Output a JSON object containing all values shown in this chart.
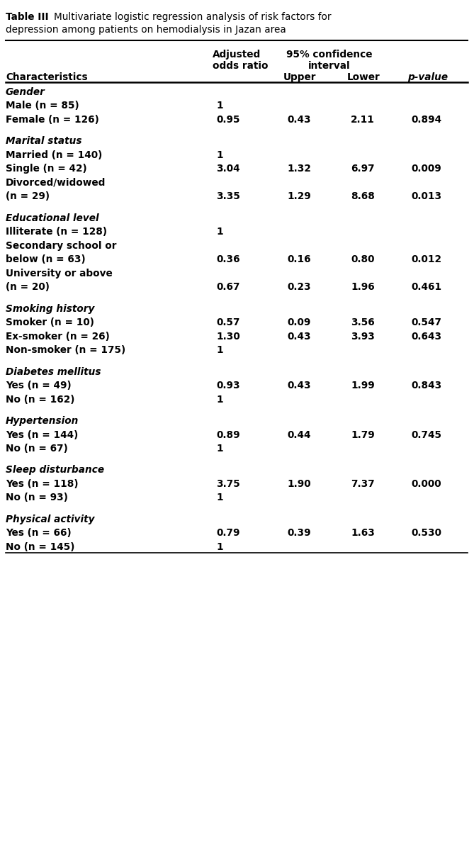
{
  "title_bold": "Table III",
  "title_rest": " Multivariate logistic regression analysis of risk factors for\ndepression among patients on hemodialysis in Jazan area",
  "rows": [
    {
      "type": "section",
      "label": "Gender"
    },
    {
      "type": "data",
      "label": "Male (n = 85)",
      "or": "1",
      "upper": "",
      "lower": "",
      "pval": ""
    },
    {
      "type": "data",
      "label": "Female (n = 126)",
      "or": "0.95",
      "upper": "0.43",
      "lower": "2.11",
      "pval": "0.894"
    },
    {
      "type": "spacer"
    },
    {
      "type": "section",
      "label": "Marital status"
    },
    {
      "type": "data",
      "label": "Married (n = 140)",
      "or": "1",
      "upper": "",
      "lower": "",
      "pval": ""
    },
    {
      "type": "data",
      "label": "Single (n = 42)",
      "or": "3.04",
      "upper": "1.32",
      "lower": "6.97",
      "pval": "0.009"
    },
    {
      "type": "data",
      "label": "Divorced/widowed",
      "or": "",
      "upper": "",
      "lower": "",
      "pval": ""
    },
    {
      "type": "data",
      "label": "(n = 29)",
      "or": "3.35",
      "upper": "1.29",
      "lower": "8.68",
      "pval": "0.013"
    },
    {
      "type": "spacer"
    },
    {
      "type": "section",
      "label": "Educational level"
    },
    {
      "type": "data",
      "label": "Illiterate (n = 128)",
      "or": "1",
      "upper": "",
      "lower": "",
      "pval": ""
    },
    {
      "type": "data",
      "label": "Secondary school or",
      "or": "",
      "upper": "",
      "lower": "",
      "pval": ""
    },
    {
      "type": "data",
      "label": "below (n = 63)",
      "or": "0.36",
      "upper": "0.16",
      "lower": "0.80",
      "pval": "0.012"
    },
    {
      "type": "data",
      "label": "University or above",
      "or": "",
      "upper": "",
      "lower": "",
      "pval": ""
    },
    {
      "type": "data",
      "label": "(n = 20)",
      "or": "0.67",
      "upper": "0.23",
      "lower": "1.96",
      "pval": "0.461"
    },
    {
      "type": "spacer"
    },
    {
      "type": "section",
      "label": "Smoking history"
    },
    {
      "type": "data",
      "label": "Smoker (n = 10)",
      "or": "0.57",
      "upper": "0.09",
      "lower": "3.56",
      "pval": "0.547"
    },
    {
      "type": "data",
      "label": "Ex-smoker (n = 26)",
      "or": "1.30",
      "upper": "0.43",
      "lower": "3.93",
      "pval": "0.643"
    },
    {
      "type": "data",
      "label": "Non-smoker (n = 175)",
      "or": "1",
      "upper": "",
      "lower": "",
      "pval": ""
    },
    {
      "type": "spacer"
    },
    {
      "type": "section",
      "label": "Diabetes mellitus"
    },
    {
      "type": "data",
      "label": "Yes (n = 49)",
      "or": "0.93",
      "upper": "0.43",
      "lower": "1.99",
      "pval": "0.843"
    },
    {
      "type": "data",
      "label": "No (n = 162)",
      "or": "1",
      "upper": "",
      "lower": "",
      "pval": ""
    },
    {
      "type": "spacer"
    },
    {
      "type": "section",
      "label": "Hypertension"
    },
    {
      "type": "data",
      "label": "Yes (n = 144)",
      "or": "0.89",
      "upper": "0.44",
      "lower": "1.79",
      "pval": "0.745"
    },
    {
      "type": "data",
      "label": "No (n = 67)",
      "or": "1",
      "upper": "",
      "lower": "",
      "pval": ""
    },
    {
      "type": "spacer"
    },
    {
      "type": "section",
      "label": "Sleep disturbance"
    },
    {
      "type": "data",
      "label": "Yes (n = 118)",
      "or": "3.75",
      "upper": "1.90",
      "lower": "7.37",
      "pval": "0.000"
    },
    {
      "type": "data",
      "label": "No (n = 93)",
      "or": "1",
      "upper": "",
      "lower": "",
      "pval": ""
    },
    {
      "type": "spacer"
    },
    {
      "type": "section",
      "label": "Physical activity"
    },
    {
      "type": "data",
      "label": "Yes (n = 66)",
      "or": "0.79",
      "upper": "0.39",
      "lower": "1.63",
      "pval": "0.530"
    },
    {
      "type": "data",
      "label": "No (n = 145)",
      "or": "1",
      "upper": "",
      "lower": "",
      "pval": ""
    }
  ],
  "bg_color": "#ffffff",
  "text_color": "#000000",
  "font_size": 9.8,
  "title_font_size": 9.8
}
